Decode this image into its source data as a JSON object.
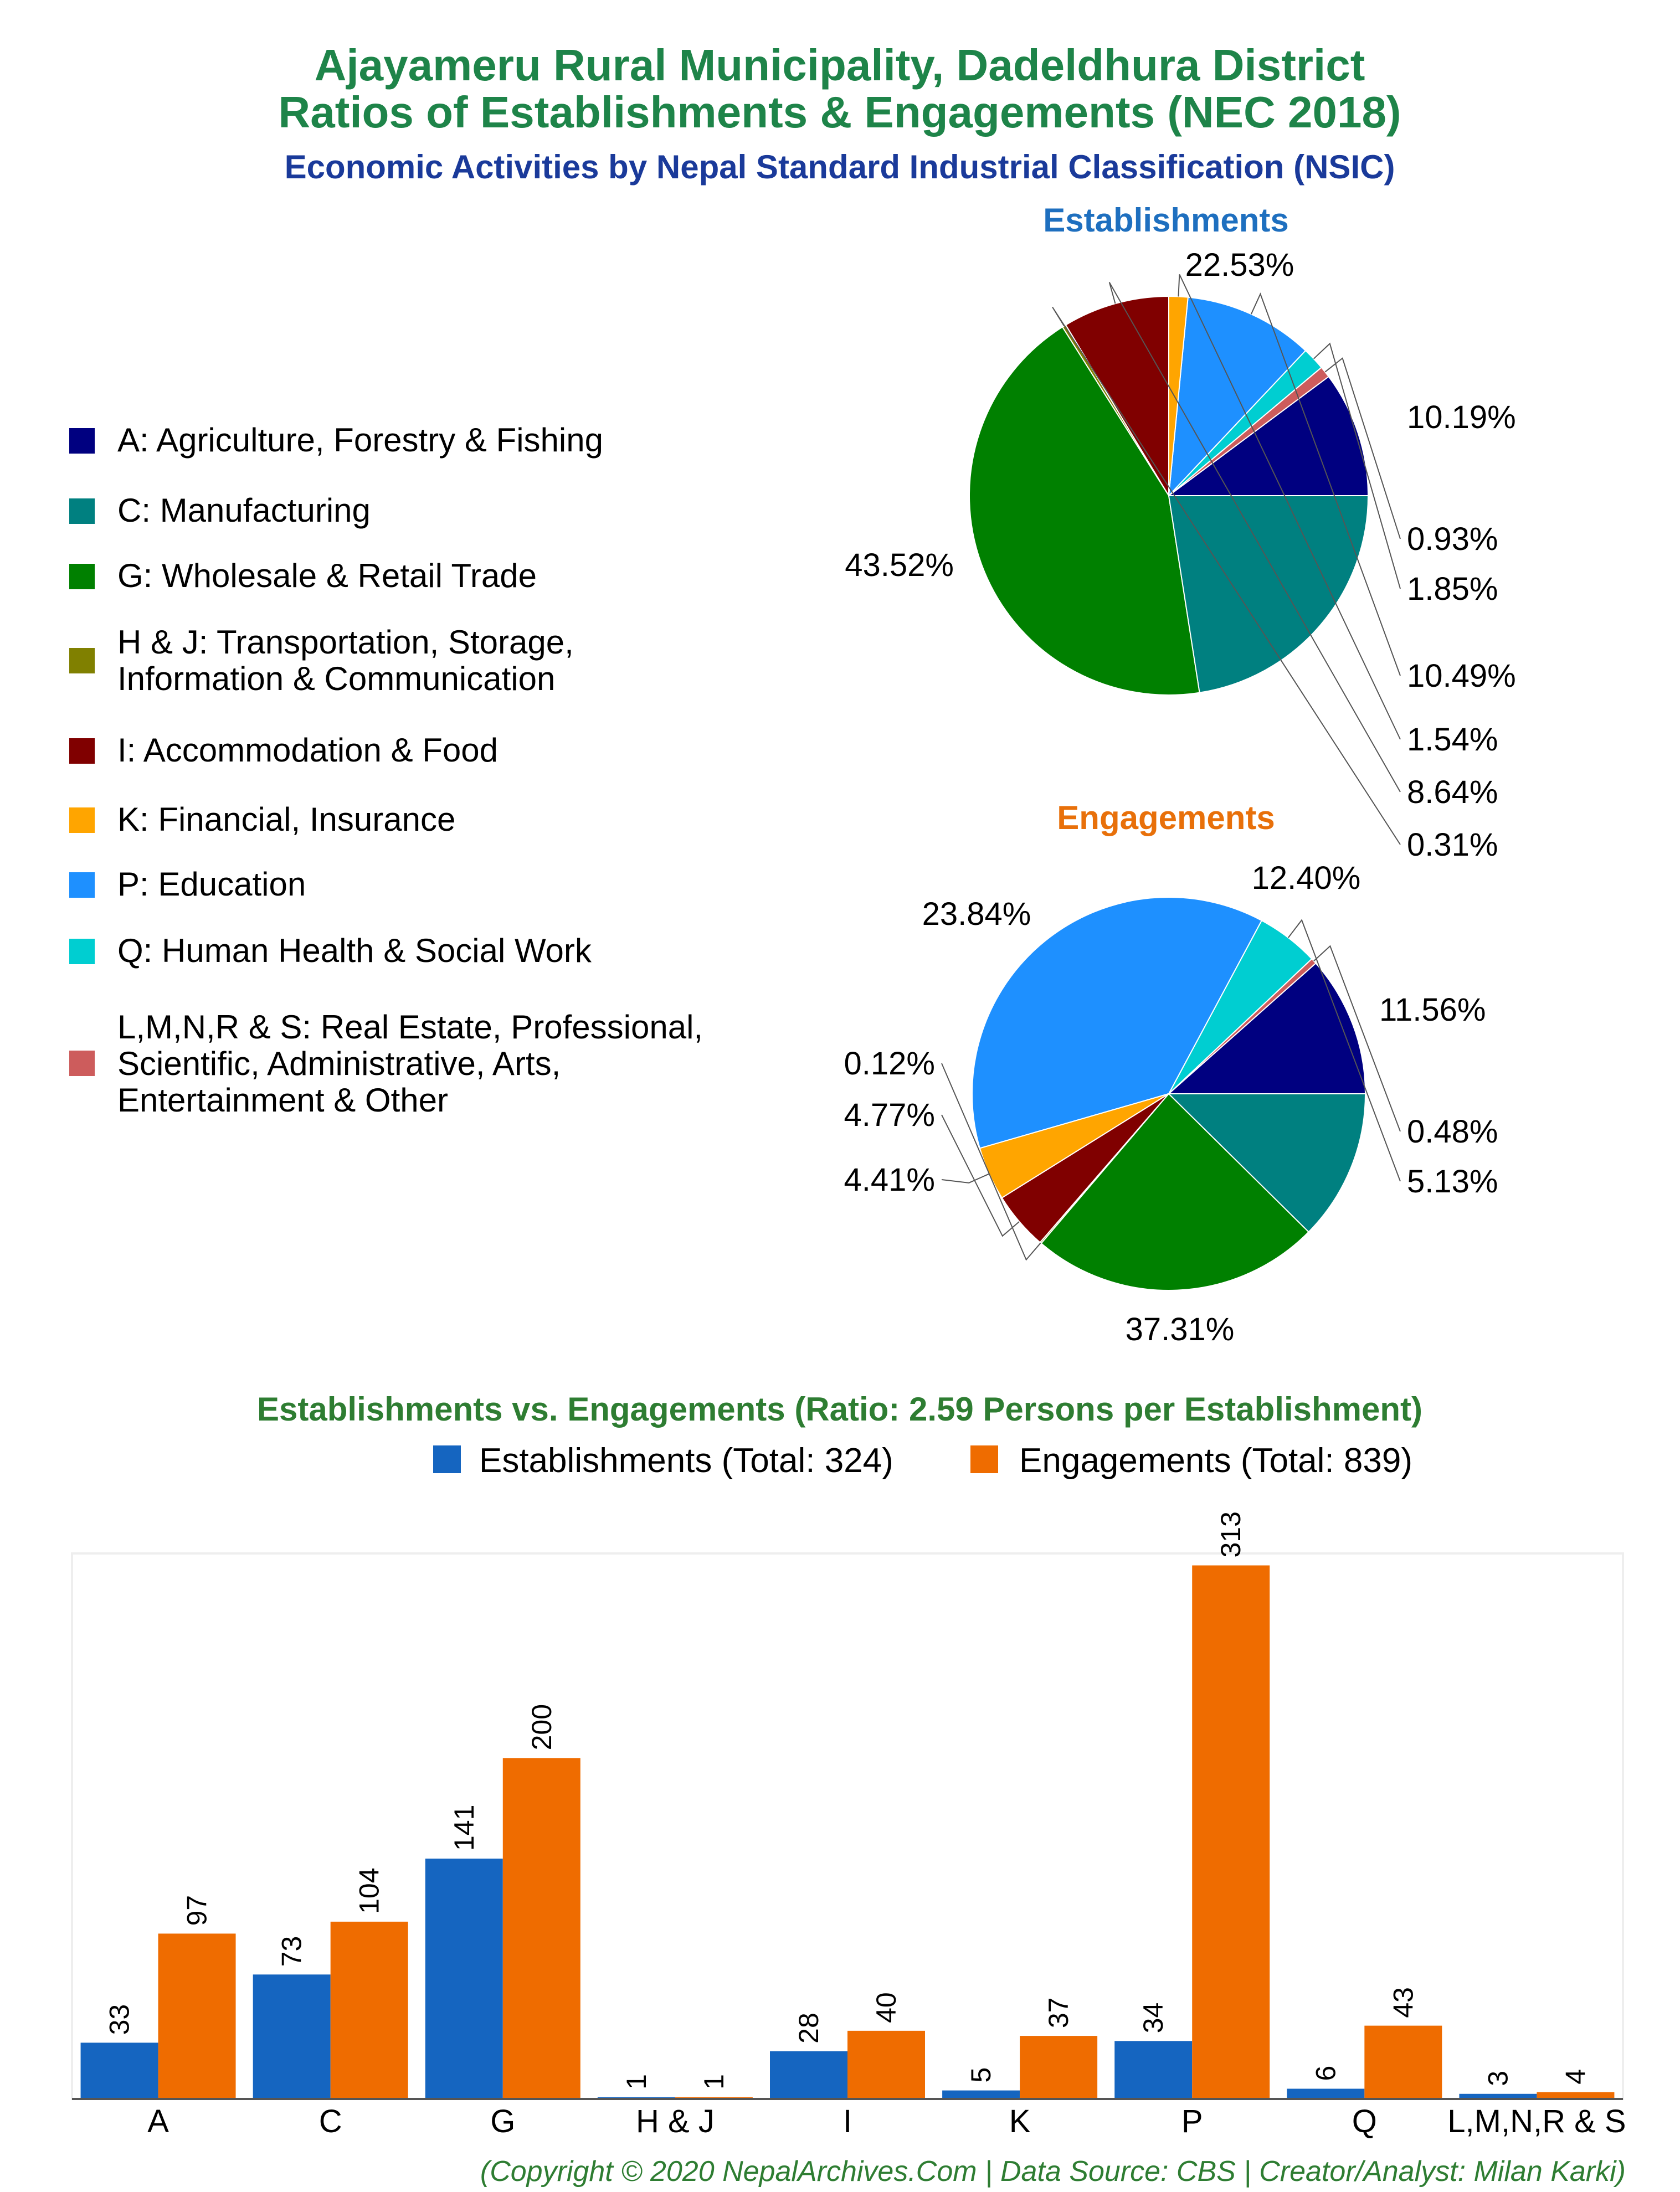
{
  "header": {
    "title_line1": "Ajayameru Rural Municipality, Dadeldhura District",
    "title_line2": "Ratios of Establishments & Engagements (NEC 2018)",
    "subtitle": "Economic Activities by Nepal Standard Industrial Classification (NSIC)"
  },
  "colors": {
    "title": "#1e8449",
    "subtitle": "#1a3a9a",
    "est_title": "#1e6fbf",
    "eng_title": "#e8700a",
    "bar_est": "#1565c0",
    "bar_eng": "#ef6c00"
  },
  "legend": {
    "items": [
      {
        "lines": [
          "A: Agriculture, Forestry & Fishing"
        ],
        "color": "#000080"
      },
      {
        "lines": [
          "C: Manufacturing"
        ],
        "color": "#008080"
      },
      {
        "lines": [
          "G: Wholesale & Retail Trade"
        ],
        "color": "#008000"
      },
      {
        "lines": [
          "H & J: Transportation, Storage,",
          "Information & Communication"
        ],
        "color": "#808000"
      },
      {
        "lines": [
          "I: Accommodation & Food"
        ],
        "color": "#800000"
      },
      {
        "lines": [
          "K: Financial, Insurance"
        ],
        "color": "#ffa500"
      },
      {
        "lines": [
          "P: Education"
        ],
        "color": "#1e90ff"
      },
      {
        "lines": [
          "Q: Human Health & Social Work"
        ],
        "color": "#00ced1"
      },
      {
        "lines": [
          "L,M,N,R & S: Real Estate, Professional,",
          "Scientific, Administrative, Arts,",
          "Entertainment & Other"
        ],
        "color": "#cd5c5c"
      }
    ]
  },
  "chart_data": [
    {
      "type": "pie",
      "title": "Establishments",
      "slices": [
        {
          "category": "A",
          "value": 10.19,
          "label": "10.19%",
          "color": "#000080"
        },
        {
          "category": "L,M,N,R & S",
          "value": 0.93,
          "label": "0.93%",
          "color": "#cd5c5c"
        },
        {
          "category": "Q",
          "value": 1.85,
          "label": "1.85%",
          "color": "#00ced1"
        },
        {
          "category": "P",
          "value": 10.49,
          "label": "10.49%",
          "color": "#1e90ff"
        },
        {
          "category": "K",
          "value": 1.54,
          "label": "1.54%",
          "color": "#ffa500"
        },
        {
          "category": "I",
          "value": 8.64,
          "label": "8.64%",
          "color": "#800000"
        },
        {
          "category": "H & J",
          "value": 0.31,
          "label": "0.31%",
          "color": "#808000"
        },
        {
          "category": "G",
          "value": 43.52,
          "label": "43.52%",
          "color": "#008000"
        },
        {
          "category": "C",
          "value": 22.53,
          "label": "22.53%",
          "color": "#008080"
        }
      ]
    },
    {
      "type": "pie",
      "title": "Engagements",
      "slices": [
        {
          "category": "A",
          "value": 11.56,
          "label": "11.56%",
          "color": "#000080"
        },
        {
          "category": "L,M,N,R & S",
          "value": 0.48,
          "label": "0.48%",
          "color": "#cd5c5c"
        },
        {
          "category": "Q",
          "value": 5.13,
          "label": "5.13%",
          "color": "#00ced1"
        },
        {
          "category": "P",
          "value": 37.31,
          "label": "37.31%",
          "color": "#1e90ff"
        },
        {
          "category": "K",
          "value": 4.41,
          "label": "4.41%",
          "color": "#ffa500"
        },
        {
          "category": "I",
          "value": 4.77,
          "label": "4.77%",
          "color": "#800000"
        },
        {
          "category": "H & J",
          "value": 0.12,
          "label": "0.12%",
          "color": "#808000"
        },
        {
          "category": "G",
          "value": 23.84,
          "label": "23.84%",
          "color": "#008000"
        },
        {
          "category": "C",
          "value": 12.4,
          "label": "12.40%",
          "color": "#008080"
        }
      ]
    },
    {
      "type": "bar",
      "title": "Establishments vs. Engagements (Ratio: 2.59 Persons per Establishment)",
      "categories": [
        "A",
        "C",
        "G",
        "H & J",
        "I",
        "K",
        "P",
        "Q",
        "L,M,N,R & S"
      ],
      "series": [
        {
          "name": "Establishments (Total: 324)",
          "values": [
            33,
            73,
            141,
            1,
            28,
            5,
            34,
            6,
            3
          ]
        },
        {
          "name": "Engagements (Total: 839)",
          "values": [
            97,
            104,
            200,
            1,
            40,
            37,
            313,
            43,
            4
          ]
        }
      ],
      "ylim": [
        0,
        320
      ]
    }
  ],
  "footer": {
    "credit": "(Copyright © 2020 NepalArchives.Com | Data Source: CBS | Creator/Analyst: Milan Karki)"
  }
}
